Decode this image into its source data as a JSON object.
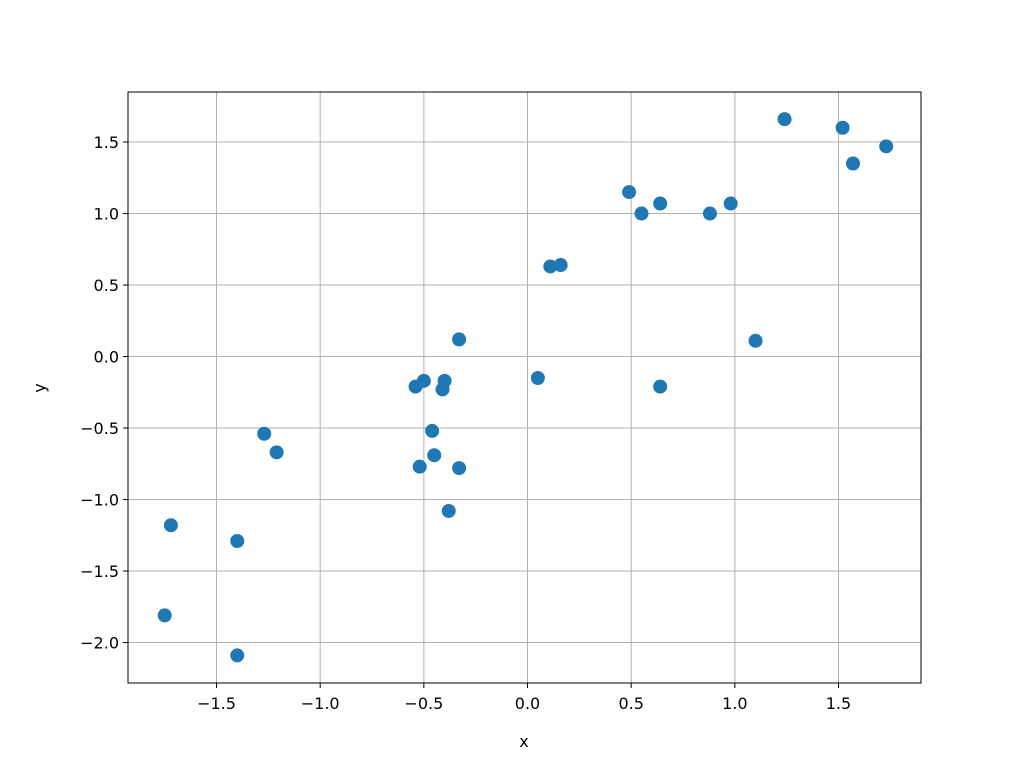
{
  "chart_data": {
    "type": "scatter",
    "xlabel": "x",
    "ylabel": "y",
    "color": "#1f77b4",
    "grid": true,
    "x": [
      -1.75,
      -1.72,
      -1.4,
      -1.4,
      -1.27,
      -1.21,
      -0.54,
      -0.5,
      -0.4,
      -0.41,
      -0.33,
      -0.46,
      -0.45,
      -0.52,
      -0.33,
      -0.38,
      0.05,
      0.11,
      0.16,
      0.49,
      0.55,
      0.64,
      0.64,
      0.88,
      0.98,
      1.1,
      1.24,
      1.52,
      1.57,
      1.73
    ],
    "y": [
      -1.81,
      -1.18,
      -1.29,
      -2.09,
      -0.54,
      -0.67,
      -0.21,
      -0.17,
      -0.17,
      -0.23,
      0.12,
      -0.52,
      -0.69,
      -0.77,
      -0.78,
      -1.08,
      -0.15,
      0.63,
      0.64,
      1.15,
      1.0,
      1.07,
      -0.21,
      1.0,
      1.07,
      0.11,
      1.66,
      1.6,
      1.35,
      1.47
    ],
    "xlim": [
      -1.927,
      1.898
    ],
    "ylim": [
      -2.283,
      1.85
    ],
    "xticks": [
      {
        "value": -1.5,
        "label": "−1.5"
      },
      {
        "value": -1,
        "label": "−1.0"
      },
      {
        "value": -0.5,
        "label": "−0.5"
      },
      {
        "value": 0,
        "label": "0.0"
      },
      0.5,
      {
        "value": 1,
        "label": "1.0"
      },
      1.5
    ],
    "yticks": [
      {
        "value": -2,
        "label": "−2.0"
      },
      {
        "value": -1.5,
        "label": "−1.5"
      },
      {
        "value": -1,
        "label": "−1.0"
      },
      {
        "value": -0.5,
        "label": "−0.5"
      },
      {
        "value": 0,
        "label": "0.0"
      },
      0.5,
      {
        "value": 1,
        "label": "1.0"
      },
      1.5
    ]
  }
}
